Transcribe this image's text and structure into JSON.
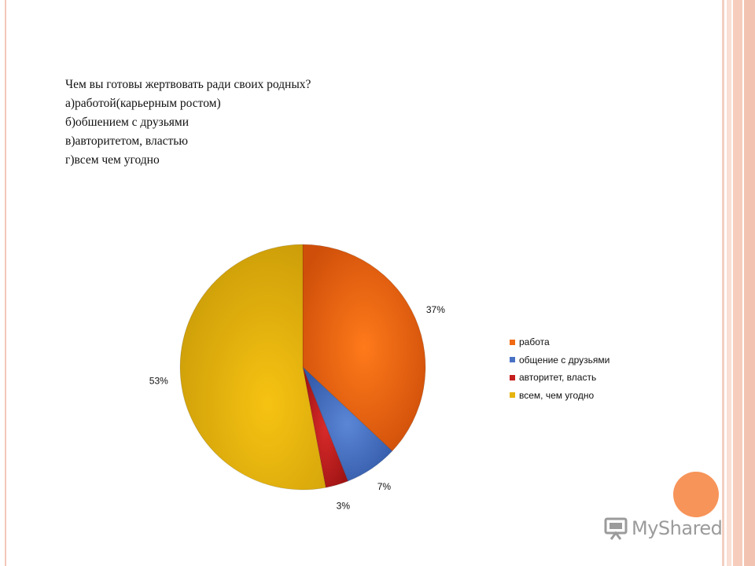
{
  "question": {
    "title": "Чем вы готовы жертвовать ради своих родных?",
    "options": [
      "а)работой(карьерным ростом)",
      "б)обшением с друзьями",
      "в)авторитетом, властью",
      "г)всем чем угодно"
    ]
  },
  "chart_data": {
    "type": "pie",
    "categories": [
      "работа",
      "общение с друзьями",
      "авторитет, власть",
      "всем, чем угодно"
    ],
    "values": [
      37,
      7,
      3,
      53
    ],
    "data_labels": [
      "37%",
      "7%",
      "3%",
      "53%"
    ],
    "colors": [
      "#ef6a12",
      "#4a72c4",
      "#c41e1e",
      "#e7b40e"
    ],
    "start_angle_deg": 0,
    "direction": "clockwise",
    "legend_position": "right"
  },
  "watermark": {
    "text": "MyShared"
  }
}
